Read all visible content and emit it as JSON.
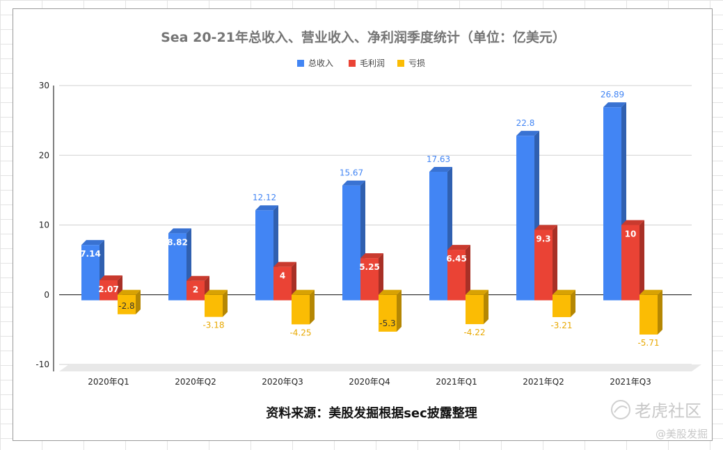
{
  "chart_data": {
    "type": "bar",
    "title": "Sea 20-21年总收入、营业收入、净利润季度统计（单位：亿美元）",
    "categories": [
      "2020年Q1",
      "2020年Q2",
      "2020年Q3",
      "2020年Q4",
      "2021年Q1",
      "2021年Q2",
      "2021年Q3"
    ],
    "series": [
      {
        "name": "总收入",
        "color": "#4285F4",
        "values": [
          7.14,
          8.82,
          12.12,
          15.67,
          17.63,
          22.8,
          26.89
        ]
      },
      {
        "name": "毛利润",
        "color": "#EA4335",
        "values": [
          2.07,
          2,
          4,
          5.25,
          6.45,
          9.3,
          10
        ]
      },
      {
        "name": "亏损",
        "color": "#FBBC04",
        "values": [
          -2.8,
          -3.18,
          -4.25,
          -5.3,
          -4.22,
          -3.21,
          -5.71
        ]
      }
    ],
    "y_ticks": [
      "30",
      "20",
      "10",
      "0",
      "-10"
    ],
    "ylim": [
      -10,
      30
    ],
    "legend_position": "top",
    "grid": true,
    "style": "3d-columns"
  },
  "source_note": "资料来源：美股发掘根据sec披露整理",
  "watermark": {
    "brand": "老虎社区",
    "handle": "@美股发掘"
  }
}
